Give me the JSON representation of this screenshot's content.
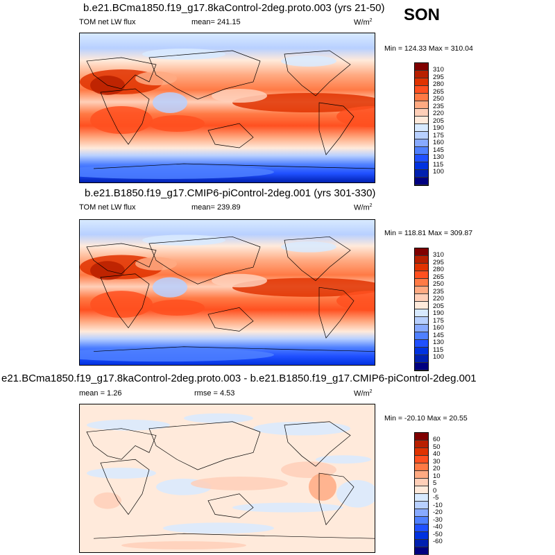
{
  "season": "SON",
  "panels": [
    {
      "title": "b.e21.BCma1850.f19_g17.8kaControl-2deg.proto.003 (yrs 21-50)",
      "left": "TOM net LW flux",
      "center": "mean= 241.15",
      "units": "W/m",
      "units_sup": "2",
      "minmax": "Min = 124.33 Max = 310.04"
    },
    {
      "title": "b.e21.B1850.f19_g17.CMIP6-piControl-2deg.001 (yrs 301-330)",
      "left": "TOM net LW flux",
      "center": "mean= 239.89",
      "units": "W/m",
      "units_sup": "2",
      "minmax": "Min = 118.81 Max = 309.87"
    },
    {
      "title": "e21.BCma1850.f19_g17.8kaControl-2deg.proto.003 - b.e21.B1850.f19_g17.CMIP6-piControl-2deg.001",
      "left": "mean =   1.26",
      "center": "rmse =   4.53",
      "units": "W/m",
      "units_sup": "2",
      "minmax": "Min = -20.10 Max =  20.55"
    }
  ],
  "colorbar_colors": [
    "#800000",
    "#b82000",
    "#e03300",
    "#ff5020",
    "#ff7a45",
    "#ffaa82",
    "#ffcfb8",
    "#ffeadb",
    "#d8eaff",
    "#b8d0ff",
    "#88aaff",
    "#4f80ff",
    "#2050ff",
    "#0032e0",
    "#0020b0",
    "#000080"
  ],
  "colorbar_abs_labels": [
    "310",
    "295",
    "280",
    "265",
    "250",
    "235",
    "220",
    "205",
    "190",
    "175",
    "160",
    "145",
    "130",
    "115",
    "100"
  ],
  "colorbar_diff_labels": [
    "60",
    "50",
    "40",
    "30",
    "20",
    "10",
    "5",
    "0",
    "-5",
    "-10",
    "-20",
    "-30",
    "-40",
    "-50",
    "-60"
  ]
}
